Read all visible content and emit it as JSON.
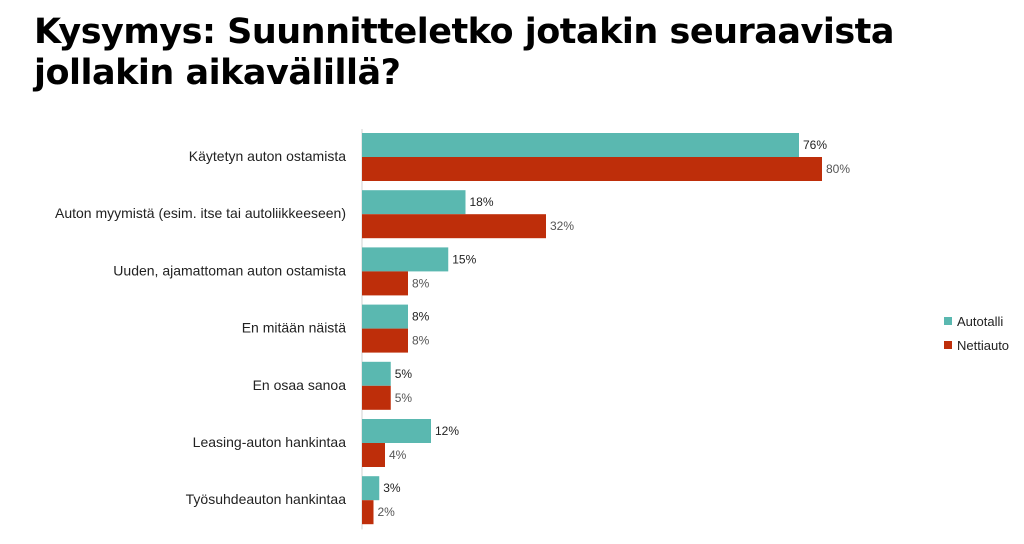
{
  "title": "Kysymys: Suunnitteletko jotakin seuraavista jollakin aikavälillä?",
  "colors": {
    "autotalli": "#5ab8b0",
    "nettiauto": "#be2e0a"
  },
  "chart_data": {
    "type": "bar",
    "orientation": "horizontal",
    "categories": [
      "Käytetyn auton ostamista",
      "Auton myymistä (esim. itse tai autoliikkeeseen)",
      "Uuden, ajamattoman auton ostamista",
      "En mitään näistä",
      "En osaa sanoa",
      "Leasing-auton hankintaa",
      "Työsuhdeauton hankintaa"
    ],
    "series": [
      {
        "name": "Autotalli",
        "values": [
          76,
          18,
          15,
          8,
          5,
          12,
          3
        ],
        "labels": [
          "76%",
          "18%",
          "15%",
          "8%",
          "5%",
          "12%",
          "3%"
        ]
      },
      {
        "name": "Nettiauto",
        "values": [
          80,
          32,
          8,
          8,
          5,
          4,
          2
        ],
        "labels": [
          "80%",
          "32%",
          "8%",
          "8%",
          "5%",
          "4%",
          "2%"
        ]
      }
    ],
    "xlim": [
      0,
      100
    ],
    "legend_position": "right",
    "grid": false
  }
}
